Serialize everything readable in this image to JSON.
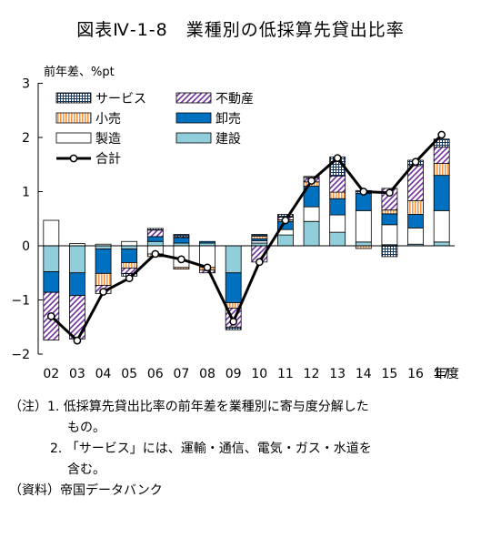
{
  "chart_data": {
    "type": "bar",
    "title": "図表Ⅳ-1-8　業種別の低採算先貸出比率",
    "ylabel": "前年差、%pt",
    "xlabel": "年度",
    "categories": [
      "02",
      "03",
      "04",
      "05",
      "06",
      "07",
      "08",
      "09",
      "10",
      "11",
      "12",
      "13",
      "14",
      "15",
      "16",
      "17"
    ],
    "ylim": [
      -2,
      3
    ],
    "yticks": [
      "3",
      "2",
      "1",
      "0",
      "−1",
      "−2"
    ],
    "ytick_values": [
      3,
      2,
      1,
      0,
      -1,
      -2
    ],
    "grid": false,
    "legend_position": "top-left",
    "series": [
      {
        "name": "建設",
        "key": "construction",
        "color": "#92cddc",
        "values": [
          -0.48,
          -0.5,
          -0.06,
          -0.06,
          0.08,
          0.05,
          0.05,
          -0.5,
          0.05,
          0.2,
          0.45,
          0.25,
          0.07,
          0.02,
          0.03,
          0.07
        ]
      },
      {
        "name": "製造",
        "key": "manufacturing",
        "color": "#ffffff",
        "values": [
          0.47,
          0.04,
          0.03,
          0.08,
          -0.15,
          -0.4,
          -0.4,
          0.0,
          0.04,
          0.1,
          0.27,
          0.32,
          0.58,
          0.37,
          0.3,
          0.58
        ]
      },
      {
        "name": "卸売",
        "key": "wholesale",
        "color": "#0070c0",
        "values": [
          -0.38,
          -0.42,
          -0.45,
          -0.25,
          0.09,
          0.1,
          0.03,
          -0.55,
          0.04,
          0.15,
          0.38,
          0.3,
          0.32,
          0.2,
          0.25,
          0.65
        ]
      },
      {
        "name": "小売",
        "key": "retail",
        "color": "#fac090",
        "values": [
          0.0,
          0.0,
          -0.22,
          -0.1,
          -0.05,
          -0.03,
          -0.05,
          -0.1,
          0.05,
          0.03,
          0.08,
          0.12,
          -0.05,
          0.07,
          0.25,
          0.22
        ]
      },
      {
        "name": "不動産",
        "key": "realestate",
        "color": "#7030a0",
        "values": [
          -0.88,
          -0.8,
          -0.15,
          -0.1,
          0.12,
          0.02,
          -0.05,
          -0.35,
          -0.3,
          0.05,
          0.08,
          0.3,
          0.0,
          0.4,
          0.65,
          0.3
        ]
      },
      {
        "name": "サービス",
        "key": "services",
        "color": "#17375e",
        "values": [
          0.0,
          0.0,
          0.0,
          -0.05,
          0.03,
          0.04,
          0.0,
          -0.05,
          0.03,
          0.05,
          0.02,
          0.35,
          0.05,
          -0.2,
          0.1,
          0.15
        ]
      }
    ],
    "line": {
      "name": "合計",
      "values": [
        -1.3,
        -1.75,
        -0.85,
        -0.6,
        -0.15,
        -0.25,
        -0.4,
        -1.4,
        -0.3,
        0.47,
        1.2,
        1.62,
        1.0,
        0.98,
        1.55,
        2.05
      ]
    }
  },
  "notes": {
    "line1": "（注）1. 低採算先貸出比率の前年差を業種別に寄与度分解した",
    "line2": "もの。",
    "line3": "2. 「サービス」には、運輸・通信、電気・ガス・水道を",
    "line4": "含む。",
    "line5": "（資料）帝国データバンク"
  }
}
